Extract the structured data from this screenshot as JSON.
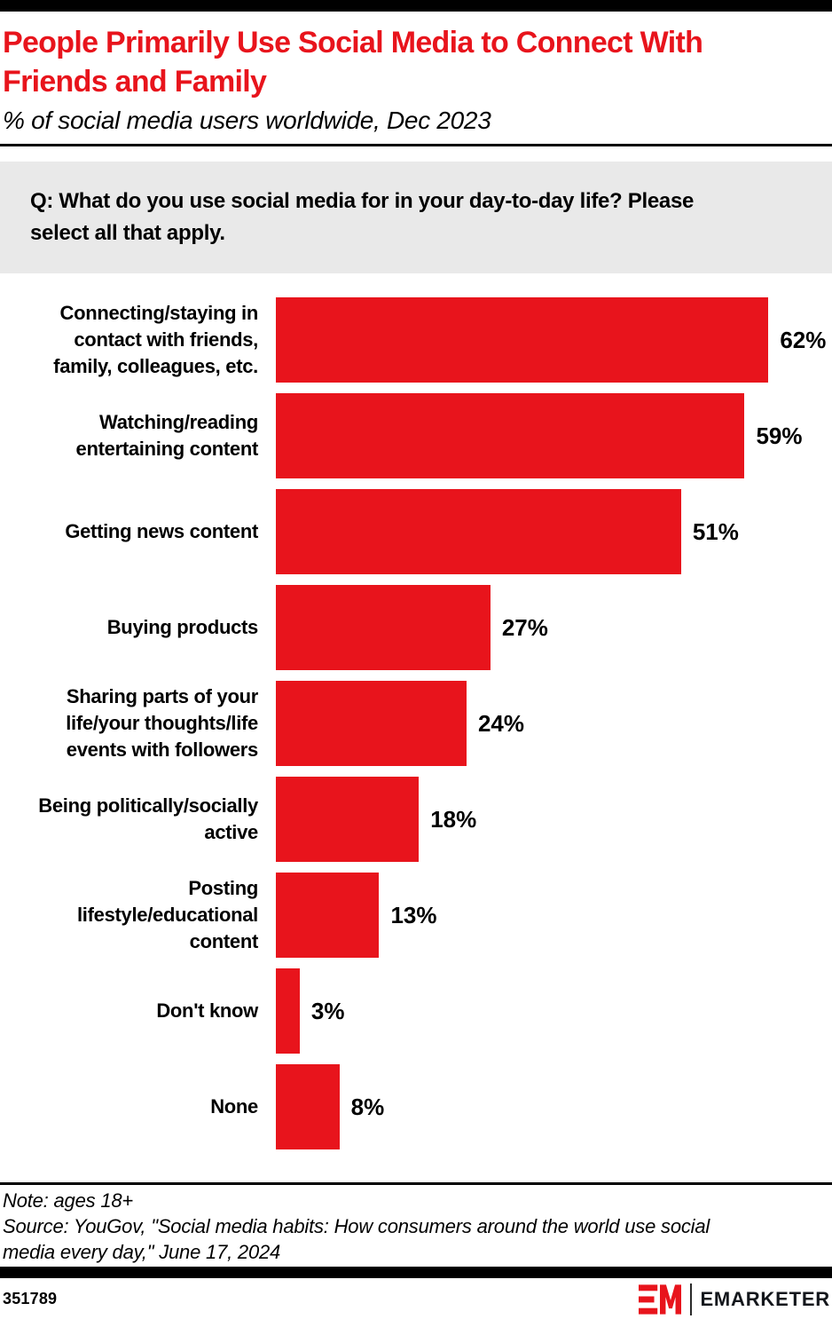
{
  "header": {
    "title": "People Primarily Use Social Media to Connect With Friends and Family",
    "title_lines": [
      "People Primarily Use Social Media to Connect With",
      "Friends and Family"
    ],
    "subtitle": "% of social media users worldwide, Dec 2023"
  },
  "question": {
    "text": "Q: What do you use social media for in your day-to-day life? Please select all that apply.",
    "lines": [
      "Q: What do you use social media for in your day-to-day life? Please",
      "select all that apply."
    ]
  },
  "chart_data": {
    "type": "bar",
    "orientation": "horizontal",
    "title": "People Primarily Use Social Media to Connect With Friends and Family",
    "subtitle": "% of social media users worldwide, Dec 2023",
    "unit": "%",
    "categories": [
      "Connecting/staying in contact with friends, family, colleagues, etc.",
      "Watching/reading entertaining content",
      "Getting news content",
      "Buying products",
      "Sharing parts of your life/your thoughts/life events with followers",
      "Being politically/socially active",
      "Posting lifestyle/educational content",
      "Don't know",
      "None"
    ],
    "category_lines": [
      [
        "Connecting/staying in",
        "contact with friends,",
        "family, colleagues, etc."
      ],
      [
        "Watching/reading",
        "entertaining content"
      ],
      [
        "Getting news content"
      ],
      [
        "Buying products"
      ],
      [
        "Sharing parts of your",
        "life/your thoughts/life",
        "events with followers"
      ],
      [
        "Being politically/socially",
        "active"
      ],
      [
        "Posting",
        "lifestyle/educational",
        "content"
      ],
      [
        "Don't know"
      ],
      [
        "None"
      ]
    ],
    "values": [
      62,
      59,
      51,
      27,
      24,
      18,
      13,
      3,
      8
    ],
    "xlim": [
      0,
      70
    ],
    "grid": false,
    "legend": "none",
    "bar_color": "#e8141c"
  },
  "footnote": {
    "note": "Note: ages 18+",
    "source": "Source: YouGov, \"Social media habits: How consumers around the world use social media every day,\" June 17, 2024",
    "source_lines": [
      "Source: YouGov, \"Social media habits: How consumers around the world use social",
      "media every day,\" June 17, 2024"
    ]
  },
  "footer": {
    "chart_id": "351789",
    "brand": "EMARKETER"
  },
  "colors": {
    "accent_red": "#e8141c",
    "question_bg": "#e9e9e9",
    "bar_black": "#000000"
  }
}
